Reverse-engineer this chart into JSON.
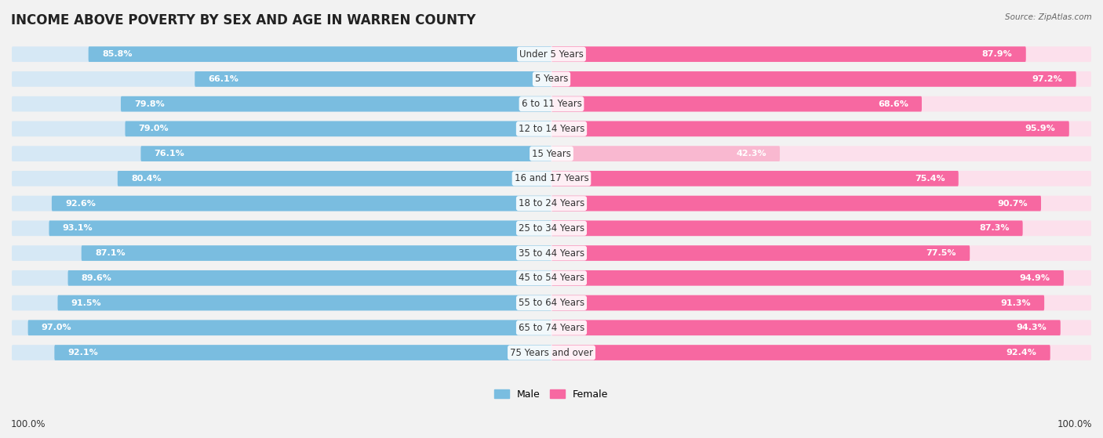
{
  "title": "INCOME ABOVE POVERTY BY SEX AND AGE IN WARREN COUNTY",
  "source": "Source: ZipAtlas.com",
  "categories": [
    "Under 5 Years",
    "5 Years",
    "6 to 11 Years",
    "12 to 14 Years",
    "15 Years",
    "16 and 17 Years",
    "18 to 24 Years",
    "25 to 34 Years",
    "35 to 44 Years",
    "45 to 54 Years",
    "55 to 64 Years",
    "65 to 74 Years",
    "75 Years and over"
  ],
  "male_values": [
    85.8,
    66.1,
    79.8,
    79.0,
    76.1,
    80.4,
    92.6,
    93.1,
    87.1,
    89.6,
    91.5,
    97.0,
    92.1
  ],
  "female_values": [
    87.9,
    97.2,
    68.6,
    95.9,
    42.3,
    75.4,
    90.7,
    87.3,
    77.5,
    94.9,
    91.3,
    94.3,
    92.4
  ],
  "male_color": "#7abde0",
  "female_color": "#f768a1",
  "female_low_color": "#f9b8d0",
  "male_label": "Male",
  "female_label": "Female",
  "background_color": "#f2f2f2",
  "bar_bg_male": "#d6e8f5",
  "bar_bg_female": "#fce0ec",
  "title_fontsize": 12,
  "label_fontsize": 8.5,
  "value_fontsize": 8,
  "source_fontsize": 7.5,
  "footer_value": "100.0%"
}
